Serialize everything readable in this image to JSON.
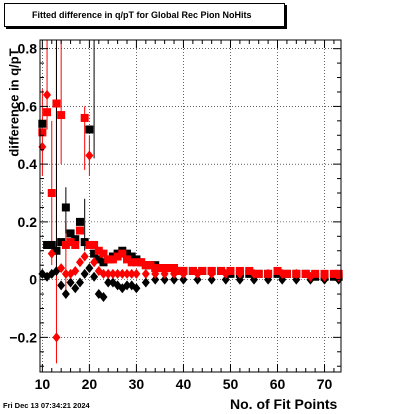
{
  "title": "Fitted difference in q/pT for Global Rec Pion NoHits",
  "timestamp": "Fri Dec 13 07:34:21 2024",
  "chart_data": {
    "type": "scatter",
    "xlabel": "No. of Fit Points",
    "ylabel": "difference in q/pT",
    "xlim": [
      9.5,
      73.5
    ],
    "ylim": [
      -0.32,
      0.83
    ],
    "x_ticks": [
      10,
      20,
      30,
      40,
      50,
      60,
      70
    ],
    "y_ticks": [
      -0.2,
      0,
      0.2,
      0.4,
      0.6,
      0.8
    ],
    "x_tick_labels": [
      "10",
      "20",
      "30",
      "40",
      "50",
      "60",
      "70"
    ],
    "y_tick_labels": [
      "−0.2",
      "0",
      "0.2",
      "0.4",
      "0.6",
      "0.8"
    ],
    "grid": true,
    "series": [
      {
        "color": "#000000",
        "marker": "square",
        "x": [
          10,
          11,
          12,
          13,
          14,
          15,
          16,
          17,
          18,
          19,
          20,
          21,
          22,
          23,
          24,
          25,
          26,
          27,
          28,
          29,
          30,
          31,
          32,
          33,
          34,
          35,
          36,
          37,
          38,
          39,
          40,
          42,
          44,
          46,
          48,
          50,
          52,
          54,
          56,
          58,
          60,
          62,
          64,
          66,
          68,
          70,
          72,
          73
        ],
        "y": [
          0.54,
          0.12,
          0.12,
          0.1,
          0.13,
          0.25,
          0.16,
          0.14,
          0.2,
          0.13,
          0.52,
          0.09,
          0.07,
          0.06,
          0.07,
          0.08,
          0.09,
          0.1,
          0.09,
          0.08,
          0.07,
          0.06,
          0.05,
          0.05,
          0.05,
          0.04,
          0.04,
          0.04,
          0.04,
          0.03,
          0.03,
          0.03,
          0.03,
          0.03,
          0.03,
          0.02,
          0.02,
          0.02,
          0.02,
          0.02,
          0.02,
          0.02,
          0.02,
          0.02,
          0.01,
          0.01,
          0.01,
          0.01
        ]
      },
      {
        "color": "#000000",
        "marker": "diamond",
        "x": [
          10,
          11,
          12,
          13,
          14,
          15,
          16,
          17,
          18,
          19,
          20,
          21,
          22,
          23,
          24,
          25,
          26,
          27,
          28,
          29,
          30,
          32,
          34,
          36,
          38,
          40,
          43,
          46,
          49,
          52,
          55,
          58,
          61,
          64,
          67,
          70,
          73
        ],
        "y": [
          0.02,
          0.01,
          0.02,
          0.03,
          -0.02,
          -0.05,
          -0.01,
          -0.03,
          -0.01,
          0.02,
          0.04,
          0.01,
          -0.05,
          -0.06,
          -0.01,
          -0.01,
          -0.02,
          -0.03,
          -0.02,
          -0.02,
          -0.03,
          -0.01,
          0.0,
          0.0,
          0.0,
          0.0,
          0.0,
          0.0,
          0.0,
          0.0,
          0.0,
          0.0,
          0.0,
          0.0,
          0.0,
          0.0,
          0.0
        ]
      },
      {
        "color": "#ff0000",
        "marker": "square",
        "x": [
          10,
          11,
          12,
          13,
          14,
          15,
          16,
          17,
          18,
          19,
          20,
          21,
          22,
          23,
          24,
          25,
          26,
          27,
          28,
          29,
          30,
          31,
          32,
          33,
          34,
          35,
          36,
          37,
          38,
          39,
          40,
          42,
          44,
          46,
          48,
          50,
          52,
          54,
          56,
          58,
          60,
          62,
          64,
          66,
          68,
          70,
          72,
          73
        ],
        "y": [
          0.51,
          0.58,
          0.3,
          0.61,
          0.57,
          0.12,
          0.13,
          0.12,
          0.17,
          0.56,
          0.12,
          0.12,
          0.1,
          0.09,
          0.07,
          0.07,
          0.08,
          0.09,
          0.07,
          0.06,
          0.06,
          0.06,
          0.05,
          0.05,
          0.04,
          0.04,
          0.04,
          0.04,
          0.04,
          0.03,
          0.03,
          0.03,
          0.03,
          0.03,
          0.03,
          0.03,
          0.03,
          0.03,
          0.02,
          0.02,
          0.03,
          0.02,
          0.02,
          0.02,
          0.02,
          0.02,
          0.02,
          0.02
        ]
      },
      {
        "color": "#ff0000",
        "marker": "diamond",
        "x": [
          10,
          11,
          12,
          13,
          14,
          15,
          16,
          17,
          18,
          19,
          20,
          21,
          22,
          23,
          24,
          25,
          26,
          27,
          28,
          29,
          30,
          32,
          34,
          36,
          38,
          40,
          43,
          46,
          49,
          52,
          55,
          58,
          61,
          64,
          67,
          70,
          73
        ],
        "y": [
          0.46,
          0.64,
          0.09,
          -0.2,
          0.04,
          0.02,
          0.02,
          0.03,
          0.06,
          0.08,
          0.43,
          0.06,
          0.03,
          0.02,
          0.02,
          0.02,
          0.02,
          0.02,
          0.02,
          0.02,
          0.02,
          0.02,
          0.02,
          0.02,
          0.02,
          0.02,
          0.02,
          0.02,
          0.02,
          0.02,
          0.02,
          0.02,
          0.02,
          0.02,
          0.01,
          0.01,
          0.01
        ]
      }
    ],
    "error_bars": [
      {
        "color": "#ff0000",
        "x": 10,
        "lo": 0.36,
        "hi": 0.66
      },
      {
        "color": "#ff0000",
        "x": 11,
        "lo": 0.52,
        "hi": 0.83
      },
      {
        "color": "#ff0000",
        "x": 12,
        "lo": 0.05,
        "hi": 0.55
      },
      {
        "color": "#ff0000",
        "x": 13,
        "lo": -0.29,
        "hi": 0.83
      },
      {
        "color": "#ff0000",
        "x": 14,
        "lo": 0.4,
        "hi": 0.83
      },
      {
        "color": "#ff0000",
        "x": 15,
        "lo": -0.05,
        "hi": 0.2
      },
      {
        "color": "#ff0000",
        "x": 19,
        "lo": 0.38,
        "hi": 0.6
      },
      {
        "color": "#ff0000",
        "x": 20,
        "lo": 0.36,
        "hi": 0.5
      },
      {
        "color": "#000000",
        "x": 13,
        "lo": 0.02,
        "hi": 0.83
      },
      {
        "color": "#000000",
        "x": 15,
        "lo": 0.16,
        "hi": 0.32
      },
      {
        "color": "#000000",
        "x": 19,
        "lo": 0.1,
        "hi": 0.28
      },
      {
        "color": "#000000",
        "x": 21,
        "lo": 0.42,
        "hi": 0.83
      }
    ]
  }
}
